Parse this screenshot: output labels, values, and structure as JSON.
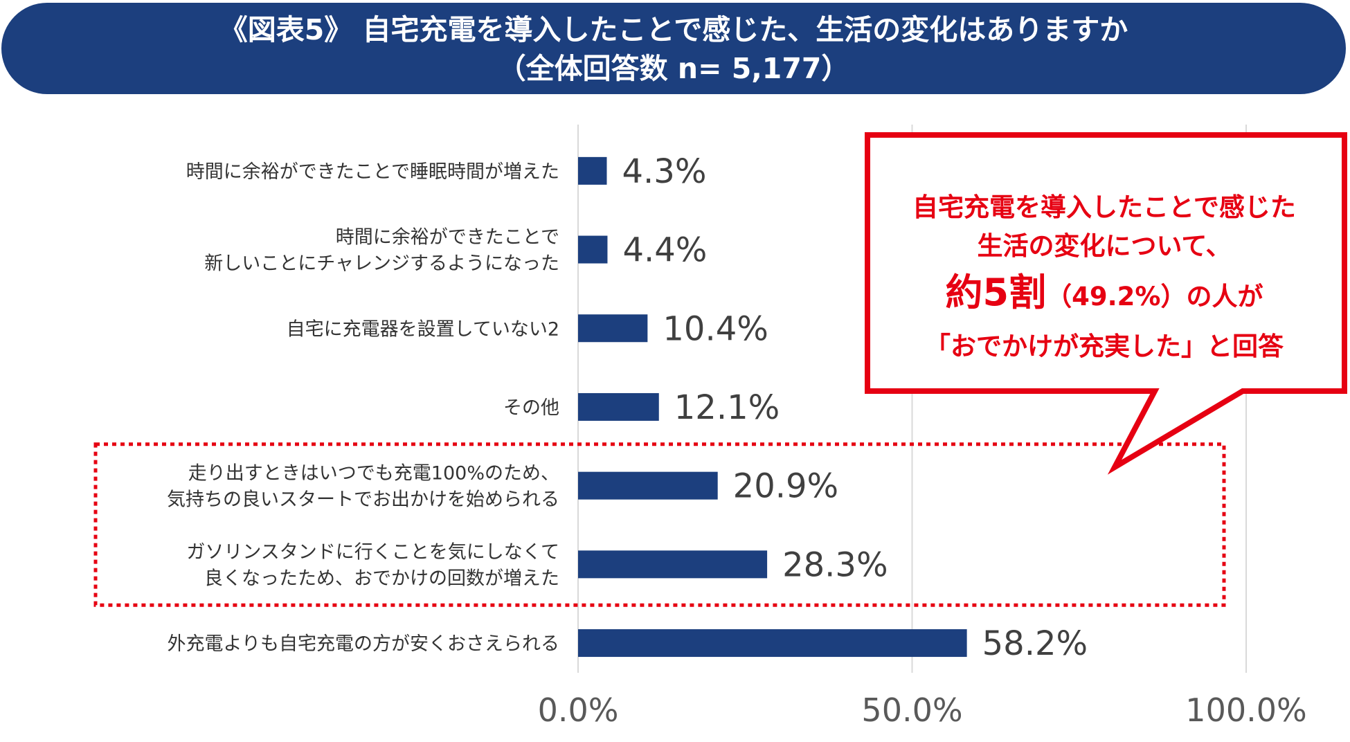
{
  "title": {
    "line1": "《図表5》 自宅充電を導入したことで感じた、生活の変化はありますか",
    "line2": "（全体回答数 n= 5,177）"
  },
  "chart_data": {
    "type": "bar",
    "orientation": "horizontal",
    "categories": [
      [
        "時間に余裕ができたことで睡眠時間が増えた"
      ],
      [
        "時間に余裕ができたことで",
        "新しいことにチャレンジするようになった"
      ],
      [
        "自宅に充電器を設置していない2"
      ],
      [
        "その他"
      ],
      [
        "走り出すときはいつでも充電100%のため、",
        "気持ちの良いスタートでお出かけを始められる"
      ],
      [
        "ガソリンスタンドに行くことを気にしなくて",
        "良くなったため、おでかけの回数が増えた"
      ],
      [
        "外充電よりも自宅充電の方が安くおさえられる"
      ]
    ],
    "values": [
      4.3,
      4.4,
      10.4,
      12.1,
      20.9,
      28.3,
      58.2
    ],
    "value_labels": [
      "4.3%",
      "4.4%",
      "10.4%",
      "12.1%",
      "20.9%",
      "28.3%",
      "58.2%"
    ],
    "xlim": [
      0,
      100
    ],
    "xticks": [
      "0.0%",
      "50.0%",
      "100.0%"
    ],
    "grid": true,
    "highlighted_categories": [
      4,
      5
    ],
    "colors": {
      "bar": "#1c3f7e",
      "highlight": "#e60012",
      "grid": "#d9d9d9"
    }
  },
  "callout": {
    "line1": "自宅充電を導入したことで感じた",
    "line2": "生活の変化について、",
    "line3_big": "約5割",
    "line3_rest": "（49.2%）の人が",
    "line4": "「おでかけが充実した」と回答"
  }
}
